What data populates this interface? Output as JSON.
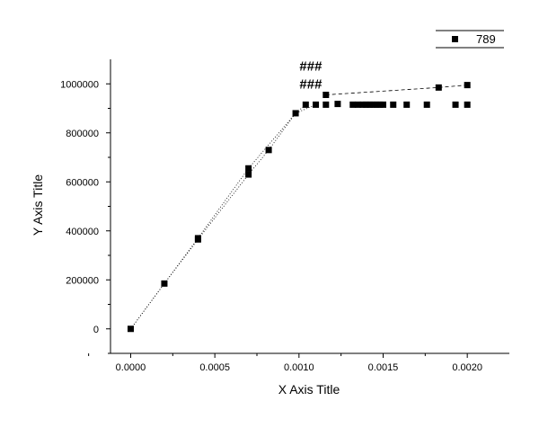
{
  "chart_data": {
    "type": "scatter",
    "xlabel": "X Axis Title",
    "ylabel": "Y Axis Title",
    "xlim": [
      -0.00012,
      0.00225
    ],
    "ylim": [
      -100000,
      1100000
    ],
    "x_ticks": [
      "0.0000",
      "0.0005",
      "0.0010",
      "0.0015",
      "0.0020"
    ],
    "x_tick_values": [
      0,
      0.0005,
      0.001,
      0.0015,
      0.002
    ],
    "y_ticks": [
      "0",
      "200000",
      "400000",
      "600000",
      "800000",
      "1000000"
    ],
    "y_tick_values": [
      0,
      200000,
      400000,
      600000,
      800000,
      1000000
    ],
    "grid": false,
    "legend_position": "top-right",
    "annotations": [
      {
        "text": "###",
        "x": 0.00107,
        "y": 1055000
      },
      {
        "text": "###",
        "x": 0.00107,
        "y": 980000
      }
    ],
    "series": [
      {
        "name": "789",
        "marker": "square",
        "color": "#000000",
        "x": [
          0.0,
          0.0002,
          0.0004,
          0.0004,
          0.0007,
          0.0007,
          0.00082,
          0.00098,
          0.00104,
          0.0011,
          0.00116,
          0.00116,
          0.00123,
          0.00132,
          0.00135,
          0.00138,
          0.0014,
          0.00142,
          0.00144,
          0.00146,
          0.00148,
          0.0015,
          0.00156,
          0.00164,
          0.00176,
          0.00183,
          0.00193,
          0.002,
          0.002
        ],
        "y": [
          0,
          185000,
          365000,
          370000,
          630000,
          655000,
          730000,
          880000,
          915000,
          915000,
          915000,
          955000,
          918000,
          915000,
          915000,
          915000,
          915000,
          915000,
          915000,
          915000,
          915000,
          915000,
          915000,
          915000,
          915000,
          985000,
          915000,
          915000,
          995000
        ]
      }
    ],
    "fit_lines": [
      {
        "style": "dotted",
        "points": [
          [
            0.0,
            0
          ],
          [
            0.0002,
            185000
          ],
          [
            0.0004,
            365000
          ],
          [
            0.0007,
            630000
          ],
          [
            0.00082,
            730000
          ],
          [
            0.00098,
            880000
          ],
          [
            0.00104,
            915000
          ]
        ]
      },
      {
        "style": "dashed",
        "points": [
          [
            0.00116,
            955000
          ],
          [
            0.00183,
            985000
          ],
          [
            0.002,
            995000
          ]
        ]
      },
      {
        "style": "dotted",
        "points": [
          [
            0.0,
            0
          ],
          [
            0.0004,
            370000
          ],
          [
            0.0007,
            655000
          ],
          [
            0.00098,
            880000
          ],
          [
            0.0011,
            915000
          ]
        ]
      }
    ]
  }
}
